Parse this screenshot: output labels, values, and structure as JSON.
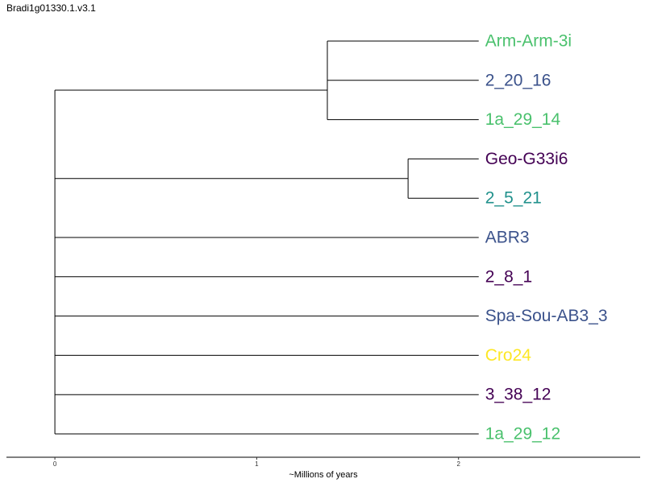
{
  "chart_data": {
    "type": "dendrogram",
    "title": "Bradi1g01330.1.v3.1",
    "xlabel": "~Millions of years",
    "xlim": [
      -0.24,
      2.9
    ],
    "xticks": [
      {
        "value": 0,
        "label": "0"
      },
      {
        "value": 1,
        "label": "1"
      },
      {
        "value": 2,
        "label": "2"
      }
    ],
    "tips": [
      {
        "label": "Arm-Arm-3i",
        "color": "#4ac16d"
      },
      {
        "label": "2_20_16",
        "color": "#3b528b"
      },
      {
        "label": "1a_29_14",
        "color": "#4ac16d"
      },
      {
        "label": "Geo-G33i6",
        "color": "#440154"
      },
      {
        "label": "2_5_21",
        "color": "#21918c"
      },
      {
        "label": "ABR3",
        "color": "#3b528b"
      },
      {
        "label": "2_8_1",
        "color": "#440154"
      },
      {
        "label": "Spa-Sou-AB3_3",
        "color": "#3b528b"
      },
      {
        "label": "Cro24",
        "color": "#fde725"
      },
      {
        "label": "3_38_12",
        "color": "#440154"
      },
      {
        "label": "1a_29_12",
        "color": "#4ac16d"
      }
    ],
    "tip_x": 2.1,
    "internal_nodes": [
      {
        "name": "n_arm_2_20_16",
        "x": 1.35,
        "children": [
          0,
          1
        ]
      },
      {
        "name": "n_arm_clade",
        "x": 1.35,
        "children": [
          "n_arm_2_20_16",
          2
        ]
      },
      {
        "name": "n_geo_2_5_21",
        "x": 1.75,
        "children": [
          3,
          4
        ]
      },
      {
        "name": "root",
        "x": 0.0,
        "children": [
          "n_arm_clade",
          "n_geo_2_5_21",
          5,
          6,
          7,
          8,
          9,
          10
        ]
      }
    ]
  }
}
